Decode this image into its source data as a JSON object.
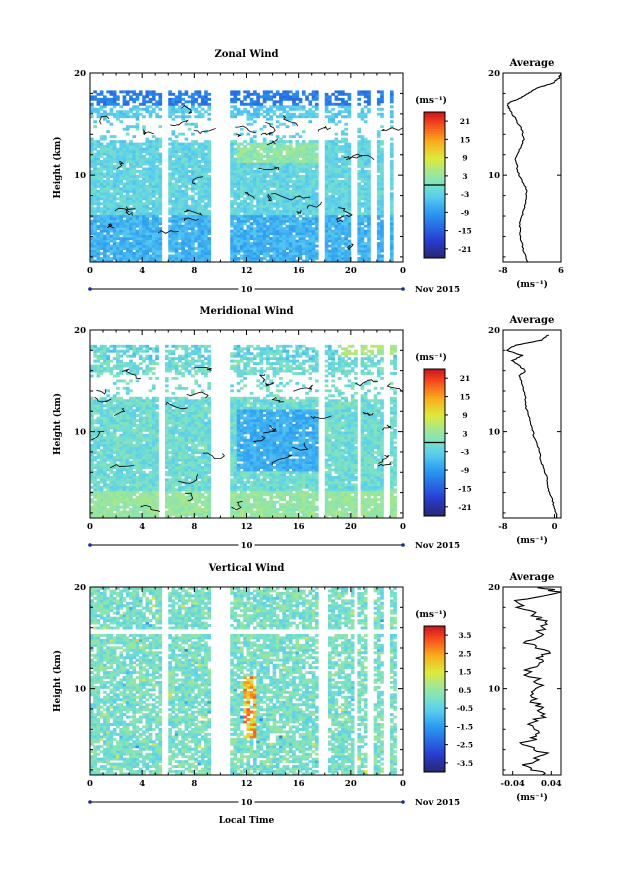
{
  "chart_data": [
    {
      "type": "heatmap",
      "title": "Zonal Wind",
      "ylabel": "Height (km)",
      "x_ticks": [
        "0",
        "4",
        "8",
        "12",
        "16",
        "20",
        "0"
      ],
      "y_ticks": [
        "10",
        "20"
      ],
      "x_range_hours": [
        0,
        24
      ],
      "y_range_km": [
        1.5,
        20
      ],
      "date_day": "10",
      "date_label": "Nov 2015",
      "colorbar": {
        "unit": "(ms⁻¹)",
        "ticks": [
          "21",
          "15",
          "9",
          "3",
          "-3",
          "-9",
          "-15",
          "-21"
        ],
        "range": [
          -24,
          24
        ],
        "contour_at": 0
      },
      "data_gaps_hours": [
        [
          5.6,
          6.0
        ],
        [
          9.2,
          10.8
        ],
        [
          17.6,
          18.1
        ],
        [
          20.1,
          20.4
        ],
        [
          21.6,
          22.1
        ],
        [
          22.6,
          23.0
        ],
        [
          23.3,
          24.0
        ]
      ],
      "top_km": 18.2,
      "base_value": -6,
      "pattern": "zonal",
      "profile": {
        "title": "Average",
        "x_ticks": [
          "-8",
          "6"
        ],
        "xlim": [
          -8,
          6
        ],
        "unit": "(ms⁻¹)",
        "heights_km": [
          1.5,
          2.5,
          3.5,
          4.5,
          5.5,
          6.5,
          7.5,
          8.5,
          9.5,
          10.5,
          11.5,
          12.5,
          13.5,
          14.5,
          15.5,
          16.5,
          17.0,
          17.5,
          18.0,
          18.5,
          19.0,
          19.5,
          20.0
        ],
        "values": [
          -2,
          -3,
          -3.5,
          -4,
          -3.8,
          -3,
          -2.5,
          -2.2,
          -3.5,
          -4.5,
          -5,
          -4,
          -3,
          -3.5,
          -5,
          -6.5,
          -7,
          -4,
          -2,
          0,
          4,
          5.5,
          6
        ]
      }
    },
    {
      "type": "heatmap",
      "title": "Meridional Wind",
      "ylabel": "Height (km)",
      "x_ticks": [
        "0",
        "4",
        "8",
        "12",
        "16",
        "20",
        "0"
      ],
      "y_ticks": [
        "10",
        "20"
      ],
      "x_range_hours": [
        0,
        24
      ],
      "y_range_km": [
        1.5,
        20
      ],
      "date_day": "10",
      "date_label": "Nov 2015",
      "colorbar": {
        "unit": "(ms⁻¹)",
        "ticks": [
          "21",
          "15",
          "9",
          "3",
          "-3",
          "-9",
          "-15",
          "-21"
        ],
        "range": [
          -24,
          24
        ],
        "contour_at": 0
      },
      "data_gaps_hours": [
        [
          5.3,
          5.8
        ],
        [
          9.2,
          10.8
        ],
        [
          17.6,
          18.1
        ],
        [
          20.4,
          20.8
        ],
        [
          22.6,
          22.9
        ],
        [
          23.4,
          24.0
        ]
      ],
      "top_km": 18.5,
      "base_value": -3,
      "pattern": "meridional",
      "profile": {
        "title": "Average",
        "x_ticks": [
          "-8",
          "0"
        ],
        "xlim": [
          -8,
          1
        ],
        "unit": "(ms⁻¹)",
        "heights_km": [
          1.5,
          2.5,
          3.5,
          4.5,
          5.5,
          6.5,
          7.5,
          8.5,
          9.5,
          10.5,
          11.5,
          12.5,
          13.5,
          14.5,
          15.5,
          16.0,
          16.5,
          17.0,
          17.5,
          18.0,
          18.5,
          19.0,
          19.5
        ],
        "values": [
          0.5,
          0,
          -0.5,
          -1,
          -1.2,
          -1.8,
          -2.2,
          -2.5,
          -3.2,
          -3.5,
          -4,
          -4.5,
          -4.5,
          -5,
          -5.5,
          -4.5,
          -5.5,
          -6.5,
          -5,
          -7.5,
          -6,
          -2,
          -1
        ]
      }
    },
    {
      "type": "heatmap",
      "title": "Vertical Wind",
      "ylabel": "Height (km)",
      "xlabel": "Local Time",
      "x_ticks": [
        "0",
        "4",
        "8",
        "12",
        "16",
        "20",
        "0"
      ],
      "y_ticks": [
        "10",
        "20"
      ],
      "x_range_hours": [
        0,
        24
      ],
      "y_range_km": [
        1.5,
        20
      ],
      "date_day": "10",
      "date_label": "Nov 2015",
      "colorbar": {
        "unit": "(ms⁻¹)",
        "ticks": [
          "3.5",
          "2.5",
          "1.5",
          "0.5",
          "-0.5",
          "-1.5",
          "-2.5",
          "-3.5"
        ],
        "range": [
          -4,
          4
        ]
      },
      "data_gaps_hours": [
        [
          5.6,
          5.9
        ],
        [
          9.2,
          10.8
        ],
        [
          17.6,
          18.2
        ],
        [
          20.2,
          20.5
        ],
        [
          21.3,
          21.7
        ],
        [
          22.6,
          22.9
        ],
        [
          23.5,
          24.0
        ]
      ],
      "top_km": 20,
      "base_value": -0.3,
      "pattern": "vertical",
      "profile": {
        "title": "Average",
        "x_ticks": [
          "-0.04",
          "0.04"
        ],
        "xlim": [
          -0.06,
          0.06
        ],
        "unit": "(ms⁻¹)",
        "heights_km": [
          1.5,
          2.5,
          3.5,
          4.5,
          5.5,
          6.5,
          7.5,
          8.5,
          9.5,
          10.5,
          11.5,
          12.5,
          13.5,
          14.5,
          15.5,
          16.5,
          17.5,
          18.5,
          19.5,
          20.0
        ],
        "values": [
          0.02,
          -0.01,
          0.03,
          -0.02,
          0.02,
          0.0,
          0.03,
          0.01,
          -0.01,
          0.02,
          -0.01,
          0.01,
          0.03,
          -0.01,
          0.02,
          0.03,
          0.0,
          -0.04,
          0.05,
          0.02
        ]
      }
    }
  ]
}
